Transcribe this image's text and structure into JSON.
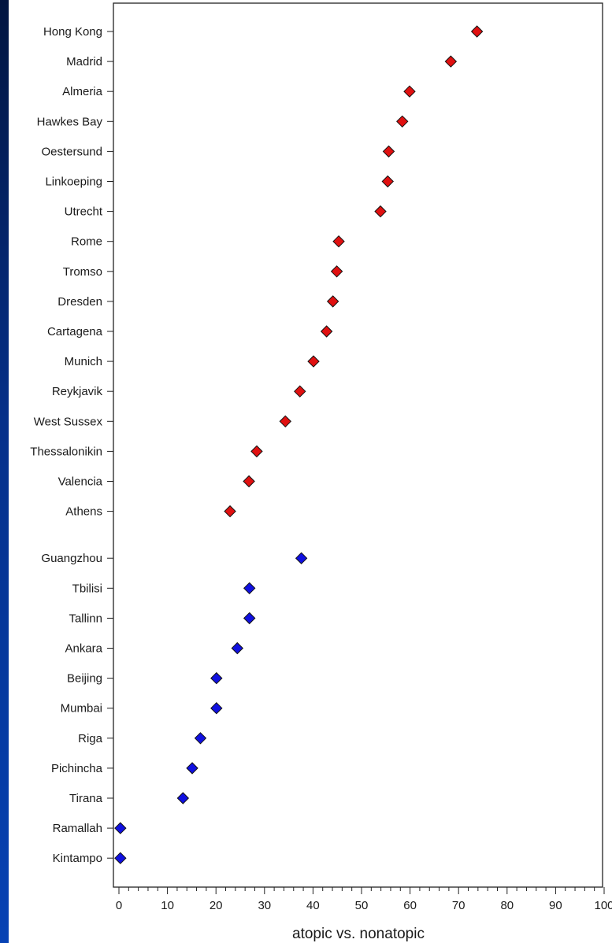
{
  "chart_data": {
    "type": "scatter",
    "title": "",
    "xlabel": "atopic vs. nonatopic",
    "ylabel": "",
    "xlim": [
      0,
      100
    ],
    "x_ticks": [
      "0",
      "10",
      "20",
      "30",
      "40",
      "50",
      "60",
      "70",
      "80",
      "90",
      "100"
    ],
    "grid": false,
    "legend": "none",
    "marker": "diamond",
    "series": [
      {
        "color": "#e01010",
        "points": [
          {
            "label": "Hong Kong",
            "value": 73.8
          },
          {
            "label": "Madrid",
            "value": 68.4
          },
          {
            "label": "Almeria",
            "value": 59.9
          },
          {
            "label": "Hawkes Bay",
            "value": 58.4
          },
          {
            "label": "Oestersund",
            "value": 55.6
          },
          {
            "label": "Linkoeping",
            "value": 55.4
          },
          {
            "label": "Utrecht",
            "value": 53.9
          },
          {
            "label": "Rome",
            "value": 45.3
          },
          {
            "label": "Tromso",
            "value": 44.9
          },
          {
            "label": "Dresden",
            "value": 44.1
          },
          {
            "label": "Cartagena",
            "value": 42.8
          },
          {
            "label": "Munich",
            "value": 40.1
          },
          {
            "label": "Reykjavik",
            "value": 37.3
          },
          {
            "label": "West Sussex",
            "value": 34.3
          },
          {
            "label": "Thessalonikin",
            "value": 28.4
          },
          {
            "label": "Valencia",
            "value": 26.8
          },
          {
            "label": "Athens",
            "value": 22.9
          }
        ]
      },
      {
        "color": "#1010e0",
        "points": [
          {
            "label": "Guangzhou",
            "value": 37.6
          },
          {
            "label": "Tbilisi",
            "value": 26.9
          },
          {
            "label": "Tallinn",
            "value": 26.9
          },
          {
            "label": "Ankara",
            "value": 24.4
          },
          {
            "label": "Beijing",
            "value": 20.1
          },
          {
            "label": "Mumbai",
            "value": 20.1
          },
          {
            "label": "Riga",
            "value": 16.8
          },
          {
            "label": "Pichincha",
            "value": 15.1
          },
          {
            "label": "Tirana",
            "value": 13.2
          },
          {
            "label": "Ramallah",
            "value": 0.3
          },
          {
            "label": "Kintampo",
            "value": 0.3
          }
        ]
      }
    ]
  }
}
